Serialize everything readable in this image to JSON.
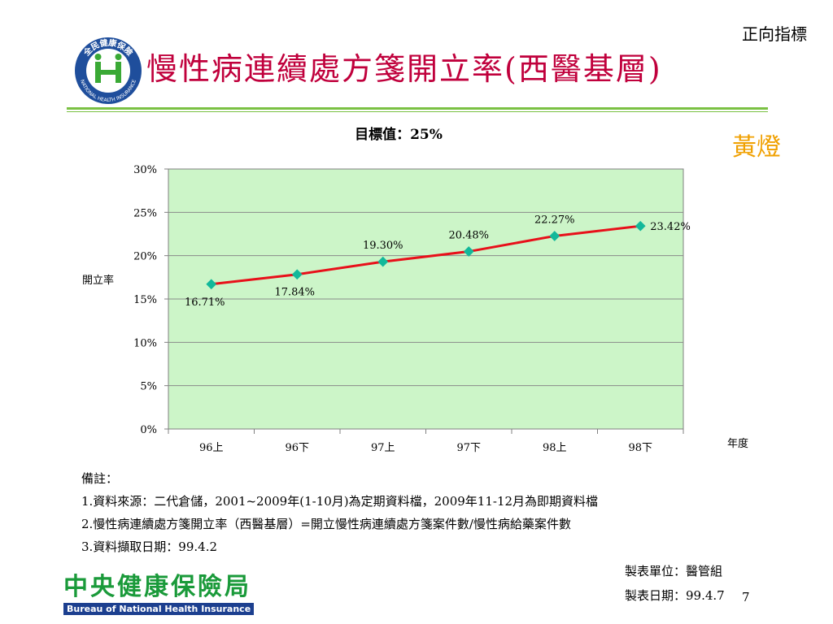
{
  "header": {
    "indicator_type": "正向指標",
    "title": "慢性病連續處方箋開立率(西醫基層)",
    "signal": "黃燈",
    "logo_text_top": "全民健康保險",
    "logo_text_bottom": "NATIONAL HEALTH INSURANCE"
  },
  "chart_data": {
    "type": "line",
    "title": "目標值：25%",
    "ylabel": "開立率",
    "xlabel": "年度",
    "categories": [
      "96上",
      "96下",
      "97上",
      "97下",
      "98上",
      "98下"
    ],
    "y_ticks": [
      "0%",
      "5%",
      "10%",
      "15%",
      "20%",
      "25%",
      "30%"
    ],
    "ylim": [
      0,
      30
    ],
    "series": [
      {
        "values": [
          16.71,
          17.84,
          19.3,
          20.48,
          22.27,
          23.42
        ],
        "labels": [
          "16.71%",
          "17.84%",
          "19.30%",
          "20.48%",
          "22.27%",
          "23.42%"
        ]
      }
    ],
    "line_color": "#e8101a",
    "marker_color": "#12b89a",
    "plot_bg": "#ccf5c8",
    "grid": true,
    "legend": "none"
  },
  "notes": {
    "heading": "備註：",
    "items": [
      "1.資料來源：二代倉儲，2001~2009年(1-10月)為定期資料檔，2009年11-12月為即期資料檔",
      "2.慢性病連續處方箋開立率（西醫基層）=開立慢性病連續處方箋案件數/慢性病給藥案件數",
      "3.資料擷取日期：99.4.2"
    ]
  },
  "meta": {
    "unit": "製表單位：醫管組",
    "date": "製表日期：99.4.7",
    "page_number": "7"
  },
  "footer": {
    "org_zh": "中央健康保險局",
    "org_en": "Bureau of National Health Insurance"
  }
}
